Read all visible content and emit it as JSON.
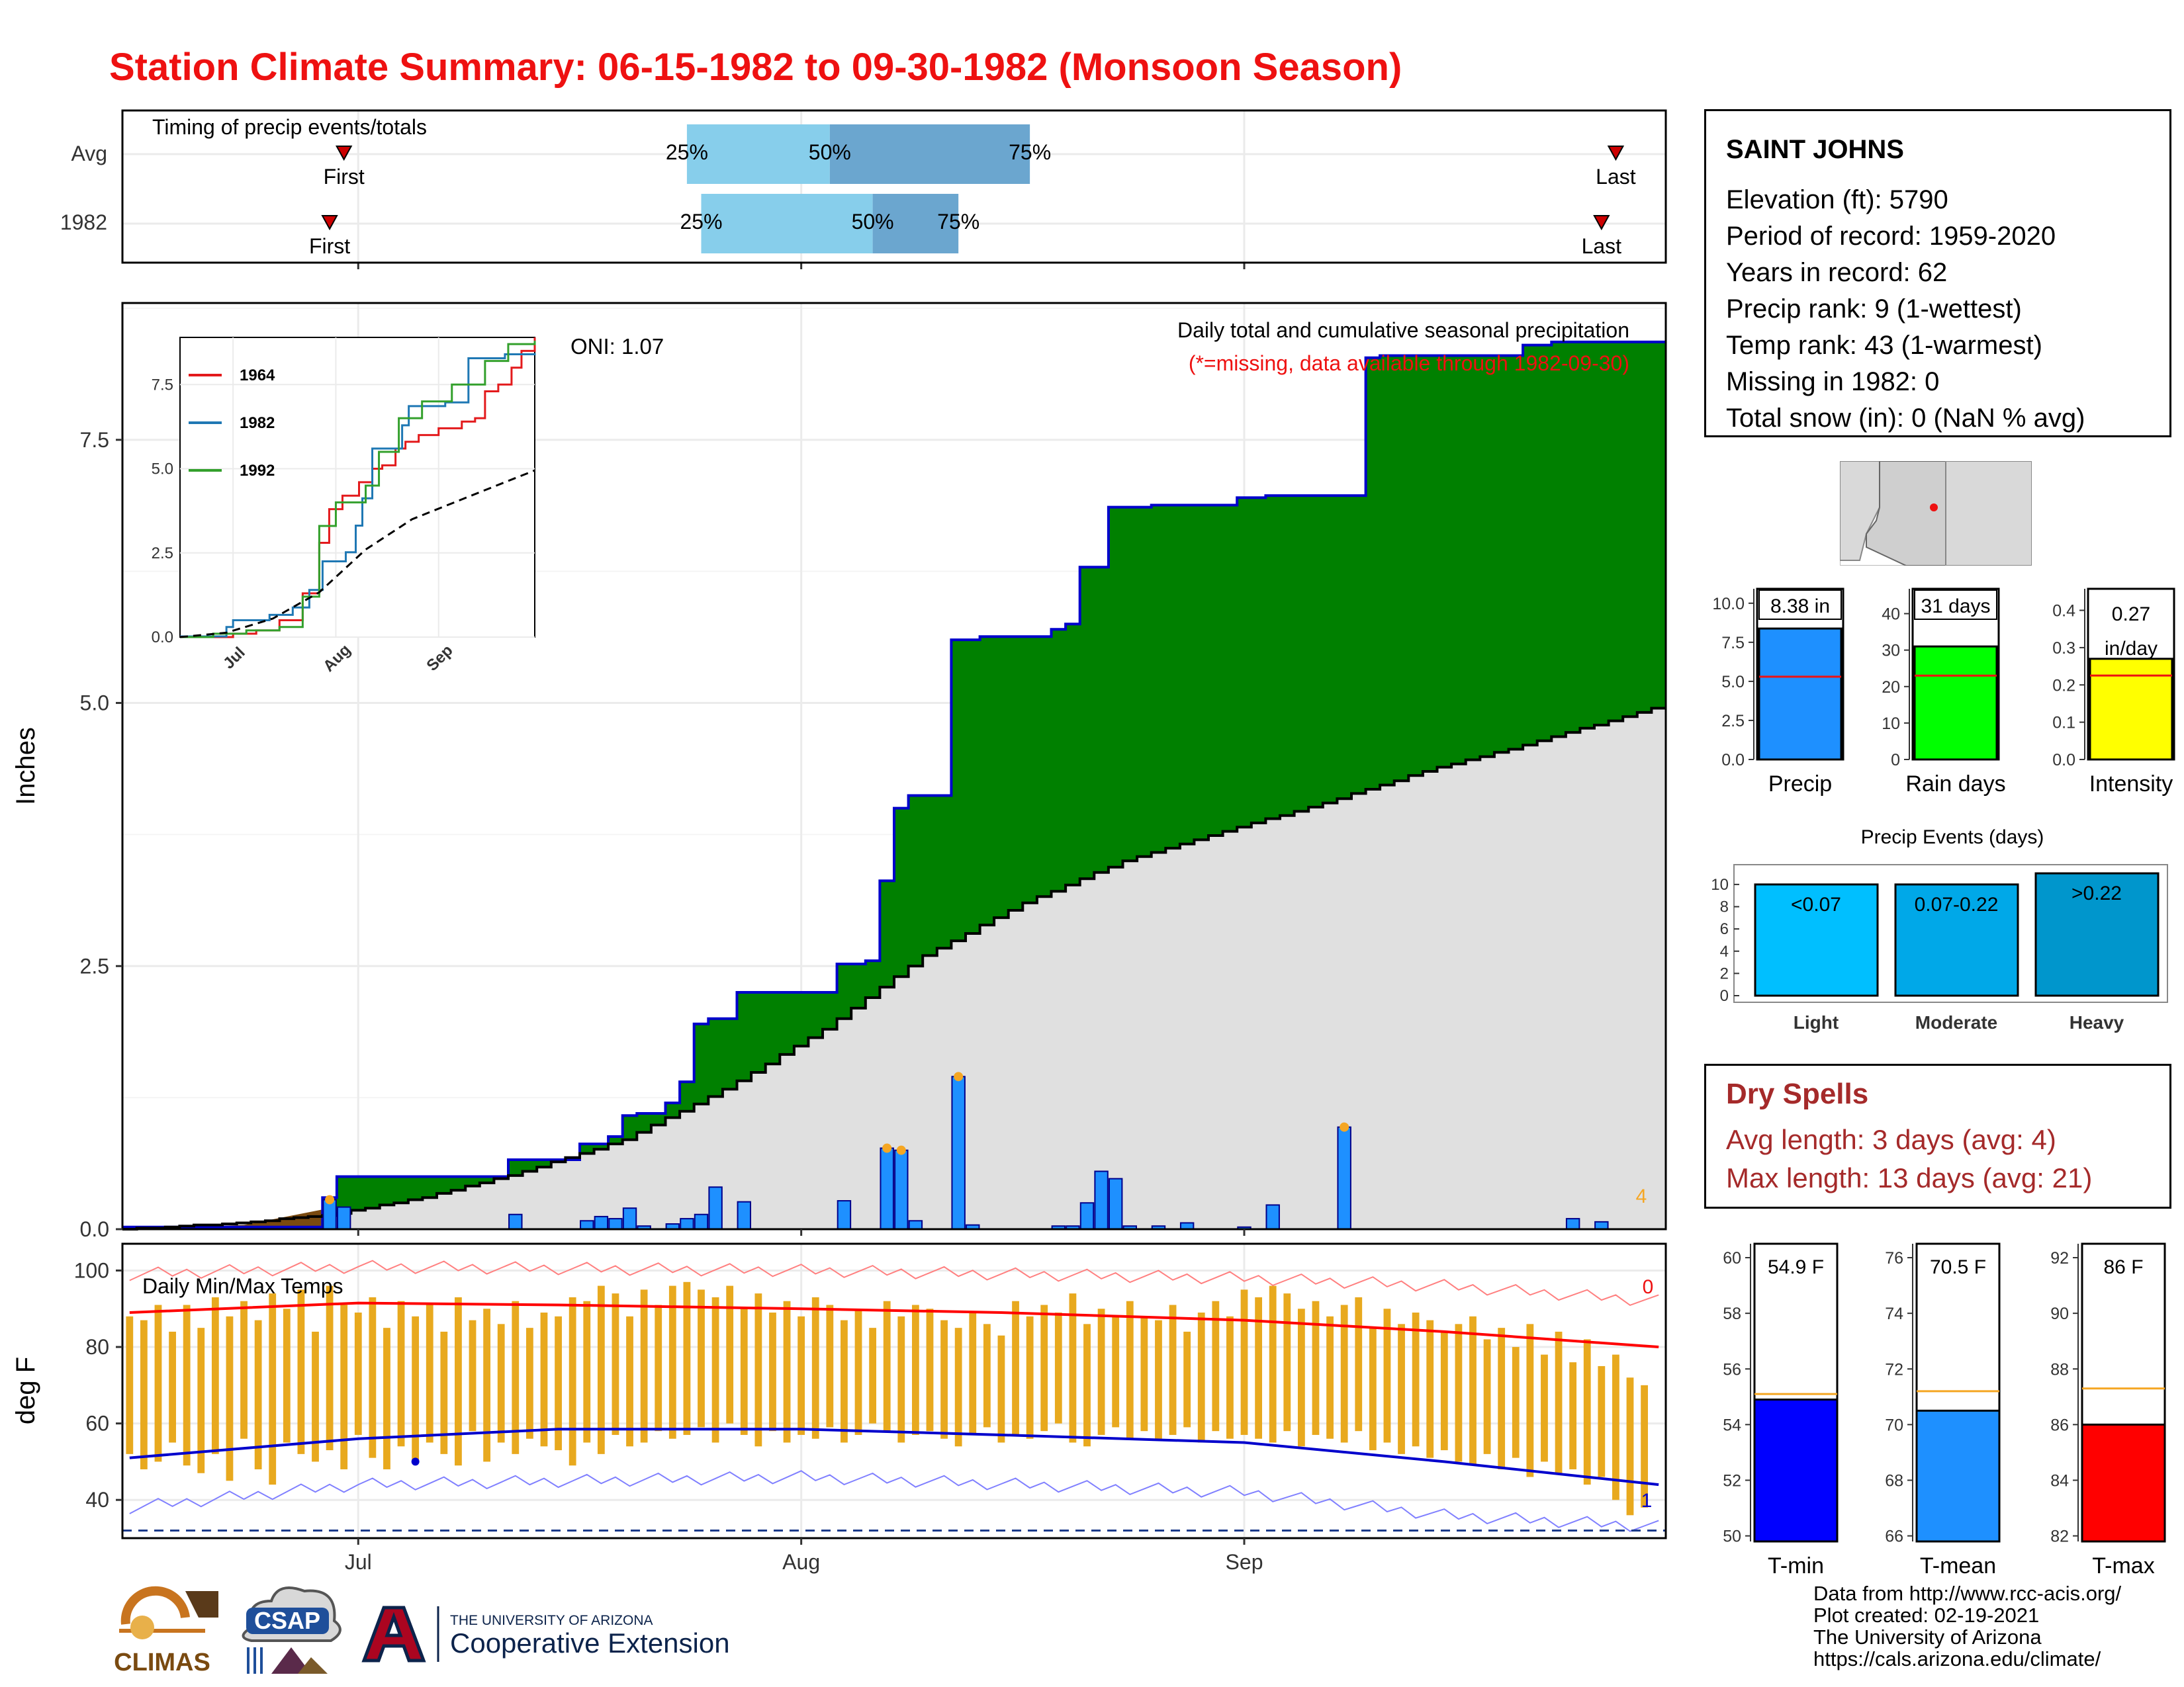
{
  "title": "Station Climate Summary: 06-15-1982 to 09-30-1982 (Monsoon Season)",
  "colors": {
    "title": "#ee1111",
    "cumulative_1982": "#008000",
    "cumulative_avg": "#e0e0e0",
    "daily_bar": "#1e90ff",
    "max_marker": "#f5a623",
    "temp_bar": "#e8a91e",
    "avg_max": "#ff0000",
    "avg_min": "#0000cc",
    "precip_bar": "#1e90ff",
    "raindays_bar": "#00ff00",
    "intensity_bar": "#ffff00",
    "light": "#00bfff",
    "moderate": "#00a8e8",
    "heavy": "#0096cc",
    "tmin": "#0000ff",
    "tmean": "#1e90ff",
    "tmax": "#ff0000",
    "dry_spells": "#a52a2a"
  },
  "timing": {
    "label": "Timing of precip events/totals",
    "rows": [
      "Avg",
      "1982"
    ],
    "first_label": "First",
    "last_label": "Last",
    "p25_label": "25%",
    "p50_label": "50%",
    "p75_label": "75%",
    "avg": {
      "first": "1982-06-30",
      "p25": "1982-07-24",
      "p50": "1982-08-03",
      "p75": "1982-08-17",
      "last": "1982-09-27"
    },
    "y1982": {
      "first": "1982-06-29",
      "p25": "1982-07-25",
      "p50": "1982-08-06",
      "p75": "1982-08-12",
      "last": "1982-09-26"
    }
  },
  "main": {
    "note_title": "Daily total and cumulative seasonal precipitation",
    "note_missing": "(*=missing, data available through 1982-09-30)",
    "oni_label": "ONI: 1.07",
    "missing_count": "4",
    "ylabel": "Inches",
    "yticks": [
      "0.0",
      "2.5",
      "5.0",
      "7.5"
    ],
    "xticks": [
      "Jul",
      "Aug",
      "Sep"
    ]
  },
  "inset": {
    "legend": [
      "1964",
      "1982",
      "1992"
    ],
    "yticks": [
      "0.0",
      "2.5",
      "5.0",
      "7.5"
    ],
    "xticks": [
      "Jul",
      "Aug",
      "Sep"
    ]
  },
  "temps": {
    "label": "Daily Min/Max Temps",
    "ylabel": "deg F",
    "yticks": [
      "40",
      "60",
      "80",
      "100"
    ],
    "count_above": "0",
    "count_below": "1"
  },
  "station": {
    "name": "SAINT JOHNS",
    "lines": [
      "Elevation (ft): 5790",
      "Period of record: 1959-2020",
      "Years in record: 62",
      "Precip rank: 9 (1-wettest)",
      "Temp rank: 43 (1-warmest)",
      "Missing in 1982: 0",
      "Total snow (in): 0 (NaN % avg)"
    ]
  },
  "summary_bars": [
    {
      "title": "Precip",
      "value_label": "8.38 in",
      "value": 8.38,
      "avg": 5.3,
      "yticks": [
        "0.0",
        "2.5",
        "5.0",
        "7.5",
        "10.0"
      ],
      "ymax": 10.5
    },
    {
      "title": "Rain days",
      "value_label": "31 days",
      "value": 31,
      "avg": 23,
      "yticks": [
        "0",
        "10",
        "20",
        "30",
        "40"
      ],
      "ymax": 45
    },
    {
      "title": "Intensity",
      "value_label": "0.27 in/day",
      "value": 0.27,
      "avg": 0.225,
      "yticks": [
        "0.0",
        "0.1",
        "0.2",
        "0.3",
        "0.4"
      ],
      "ymax": 0.44
    }
  ],
  "events": {
    "title": "Precip Events (days)",
    "categories": [
      "Light",
      "Moderate",
      "Heavy"
    ],
    "bins": [
      "<0.07",
      "0.07-0.22",
      ">0.22"
    ],
    "values": [
      10,
      10,
      11
    ],
    "yticks": [
      "0",
      "2",
      "4",
      "6",
      "8",
      "10"
    ]
  },
  "dry_spells": {
    "title": "Dry Spells",
    "avg_line": "Avg length: 3 days (avg: 4)",
    "max_line": "Max length: 13 days (avg: 21)"
  },
  "temp_summary": [
    {
      "title": "T-min",
      "value_label": "54.9 F",
      "value": 54.9,
      "avg": 55.1,
      "ymin": 49.8,
      "ymax": 60.5,
      "yticks": [
        "50",
        "52",
        "54",
        "56",
        "58",
        "60"
      ]
    },
    {
      "title": "T-mean",
      "value_label": "70.5 F",
      "value": 70.5,
      "avg": 71.2,
      "ymin": 65.8,
      "ymax": 76.5,
      "yticks": [
        "66",
        "68",
        "70",
        "72",
        "74",
        "76"
      ]
    },
    {
      "title": "T-max",
      "value_label": "86 F",
      "value": 86,
      "avg": 87.3,
      "ymin": 81.8,
      "ymax": 92.5,
      "yticks": [
        "82",
        "84",
        "86",
        "88",
        "90",
        "92"
      ]
    }
  ],
  "credits": [
    "Data from http://www.rcc-acis.org/",
    "Plot created: 02-19-2021",
    "The University of Arizona",
    "https://cals.arizona.edu/climate/"
  ],
  "logos": {
    "climas": "CLIMAS",
    "csap": "CSAP",
    "ua_line1": "THE UNIVERSITY OF ARIZONA",
    "ua_line2": "Cooperative Extension"
  },
  "chart_data": [
    {
      "type": "area",
      "title": "Daily total and cumulative seasonal precipitation",
      "ylabel": "Inches",
      "ylim": [
        0,
        8.8
      ],
      "xlim": [
        "1982-06-15",
        "1982-09-30"
      ],
      "series": [
        {
          "name": "1982",
          "kind": "cumulative",
          "x": [
            "1982-06-15",
            "1982-06-29",
            "1982-06-30",
            "1982-07-01",
            "1982-07-12",
            "1982-07-17",
            "1982-07-19",
            "1982-07-20",
            "1982-07-21",
            "1982-07-23",
            "1982-07-24",
            "1982-07-25",
            "1982-07-26",
            "1982-07-28",
            "1982-08-04",
            "1982-08-06",
            "1982-08-07",
            "1982-08-08",
            "1982-08-09",
            "1982-08-12",
            "1982-08-14",
            "1982-08-19",
            "1982-08-20",
            "1982-08-21",
            "1982-08-23",
            "1982-08-26",
            "1982-09-01",
            "1982-09-03",
            "1982-09-10",
            "1982-09-11",
            "1982-09-20",
            "1982-09-21",
            "1982-09-23",
            "1982-09-30"
          ],
          "y": [
            0.02,
            0.3,
            0.5,
            0.5,
            0.66,
            0.81,
            0.88,
            1.08,
            1.1,
            1.2,
            1.4,
            1.95,
            2.0,
            2.25,
            2.52,
            2.55,
            3.31,
            4.0,
            4.12,
            5.6,
            5.63,
            5.7,
            5.75,
            6.29,
            6.86,
            6.88,
            6.95,
            6.97,
            8.28,
            8.3,
            8.3,
            8.4,
            8.43,
            8.43
          ]
        },
        {
          "name": "Avg",
          "kind": "cumulative",
          "x": [
            "1982-06-15",
            "1982-06-22",
            "1982-06-29",
            "1982-07-06",
            "1982-07-13",
            "1982-07-20",
            "1982-07-27",
            "1982-08-03",
            "1982-08-10",
            "1982-08-17",
            "1982-08-24",
            "1982-08-31",
            "1982-09-07",
            "1982-09-14",
            "1982-09-21",
            "1982-09-30"
          ],
          "y": [
            0.0,
            0.05,
            0.13,
            0.3,
            0.55,
            0.85,
            1.33,
            1.9,
            2.6,
            3.1,
            3.5,
            3.78,
            4.05,
            4.35,
            4.6,
            4.95
          ]
        },
        {
          "name": "Daily",
          "kind": "bar",
          "x": [
            "1982-06-29",
            "1982-06-30",
            "1982-07-12",
            "1982-07-17",
            "1982-07-18",
            "1982-07-19",
            "1982-07-20",
            "1982-07-21",
            "1982-07-23",
            "1982-07-24",
            "1982-07-25",
            "1982-07-26",
            "1982-07-28",
            "1982-08-04",
            "1982-08-07",
            "1982-08-08",
            "1982-08-09",
            "1982-08-12",
            "1982-08-13",
            "1982-08-19",
            "1982-08-20",
            "1982-08-21",
            "1982-08-22",
            "1982-08-23",
            "1982-08-24",
            "1982-08-26",
            "1982-08-28",
            "1982-09-01",
            "1982-09-03",
            "1982-09-08",
            "1982-09-24",
            "1982-09-26"
          ],
          "y": [
            0.28,
            0.21,
            0.14,
            0.08,
            0.12,
            0.1,
            0.2,
            0.03,
            0.05,
            0.1,
            0.14,
            0.4,
            0.26,
            0.27,
            0.77,
            0.75,
            0.08,
            1.45,
            0.04,
            0.03,
            0.03,
            0.25,
            0.55,
            0.48,
            0.03,
            0.03,
            0.06,
            0.02,
            0.23,
            0.97,
            0.1,
            0.07
          ]
        }
      ]
    },
    {
      "type": "line",
      "title": "",
      "xlim": [
        "1982-06-15",
        "1982-09-30"
      ],
      "ylim": [
        0,
        8.9
      ],
      "series": [
        {
          "name": "1964",
          "x": [
            "1982-06-15",
            "1982-07-01",
            "1982-07-08",
            "1982-07-15",
            "1982-07-22",
            "1982-07-27",
            "1982-07-30",
            "1982-08-03",
            "1982-08-08",
            "1982-08-12",
            "1982-08-15",
            "1982-08-19",
            "1982-08-22",
            "1982-08-26",
            "1982-09-01",
            "1982-09-08",
            "1982-09-12",
            "1982-09-15",
            "1982-09-19",
            "1982-09-23",
            "1982-09-26",
            "1982-09-30"
          ],
          "y": [
            0.0,
            0.1,
            0.2,
            0.5,
            1.3,
            2.8,
            3.8,
            4.2,
            4.6,
            5.0,
            5.1,
            5.6,
            5.8,
            6.0,
            6.2,
            6.4,
            6.5,
            7.3,
            7.5,
            8.0,
            8.5,
            8.9
          ]
        },
        {
          "name": "1982",
          "x": [
            "1982-06-15",
            "1982-06-29",
            "1982-07-01",
            "1982-07-12",
            "1982-07-19",
            "1982-07-24",
            "1982-07-28",
            "1982-08-04",
            "1982-08-07",
            "1982-08-09",
            "1982-08-12",
            "1982-08-21",
            "1982-08-23",
            "1982-09-03",
            "1982-09-10",
            "1982-09-21",
            "1982-09-30"
          ],
          "y": [
            0.02,
            0.3,
            0.5,
            0.66,
            0.88,
            1.4,
            2.25,
            2.52,
            3.31,
            4.12,
            5.6,
            6.29,
            6.86,
            6.97,
            8.28,
            8.4,
            8.43
          ]
        },
        {
          "name": "1992",
          "x": [
            "1982-06-15",
            "1982-06-25",
            "1982-07-05",
            "1982-07-15",
            "1982-07-22",
            "1982-07-27",
            "1982-08-01",
            "1982-08-10",
            "1982-08-14",
            "1982-08-20",
            "1982-08-27",
            "1982-09-05",
            "1982-09-15",
            "1982-09-22",
            "1982-09-30"
          ],
          "y": [
            0.0,
            0.1,
            0.2,
            0.3,
            1.2,
            3.3,
            4.0,
            4.5,
            5.5,
            6.5,
            7.0,
            7.5,
            8.2,
            8.7,
            8.8
          ]
        },
        {
          "name": "Avg",
          "x": [
            "1982-06-15",
            "1982-06-29",
            "1982-07-13",
            "1982-07-27",
            "1982-08-10",
            "1982-08-24",
            "1982-09-07",
            "1982-09-21",
            "1982-09-30"
          ],
          "y": [
            0.0,
            0.13,
            0.55,
            1.33,
            2.6,
            3.5,
            4.05,
            4.6,
            4.95
          ]
        }
      ]
    },
    {
      "type": "bar",
      "title": "Daily Min/Max Temps",
      "ylabel": "deg F",
      "ylim": [
        30,
        107
      ],
      "xlim": [
        "1982-06-15",
        "1982-09-30"
      ],
      "series": [
        {
          "name": "Max",
          "x_start": "1982-06-15",
          "values": [
            88,
            87,
            91,
            84,
            91,
            85,
            93,
            88,
            92,
            87,
            94,
            90,
            95,
            84,
            96,
            91,
            89,
            93,
            85,
            92,
            88,
            91,
            84,
            93,
            87,
            90,
            86,
            92,
            85,
            89,
            88,
            93,
            92,
            96,
            94,
            88,
            95,
            91,
            96,
            97,
            95,
            93,
            96,
            90,
            94,
            89,
            92,
            88,
            93,
            91,
            87,
            90,
            85,
            92,
            88,
            91,
            90,
            87,
            85,
            89,
            86,
            83,
            92,
            88,
            91,
            89,
            94,
            86,
            90,
            88,
            92,
            88,
            87,
            91,
            84,
            89,
            92,
            88,
            95,
            93,
            96,
            94,
            90,
            92,
            88,
            91,
            93,
            85,
            90,
            86,
            89,
            87,
            84,
            86,
            88,
            82,
            85,
            80,
            86,
            78,
            84,
            76,
            82,
            75,
            78,
            72,
            70
          ]
        },
        {
          "name": "Min",
          "x_start": "1982-06-15",
          "values": [
            52,
            48,
            50,
            55,
            49,
            47,
            52,
            45,
            56,
            48,
            44,
            55,
            52,
            50,
            53,
            48,
            57,
            51,
            48,
            54,
            50,
            55,
            52,
            49,
            58,
            50,
            55,
            52,
            56,
            54,
            53,
            49,
            55,
            52,
            57,
            54,
            55,
            58,
            56,
            57,
            59,
            55,
            60,
            57,
            54,
            58,
            55,
            57,
            56,
            59,
            55,
            57,
            60,
            58,
            55,
            57,
            58,
            56,
            54,
            57,
            59,
            55,
            57,
            56,
            58,
            60,
            55,
            54,
            57,
            59,
            56,
            58,
            56,
            57,
            59,
            55,
            58,
            56,
            57,
            56,
            55,
            58,
            54,
            57,
            56,
            55,
            58,
            53,
            55,
            52,
            54,
            51,
            53,
            50,
            49,
            52,
            48,
            51,
            46,
            50,
            47,
            48,
            44,
            46,
            40,
            36,
            38
          ]
        },
        {
          "name": "Avg max",
          "x": [
            "1982-06-15",
            "1982-07-01",
            "1982-07-15",
            "1982-08-01",
            "1982-08-15",
            "1982-09-01",
            "1982-09-15",
            "1982-09-30"
          ],
          "y": [
            89,
            91.5,
            91,
            90,
            89,
            87,
            84,
            80
          ]
        },
        {
          "name": "Avg min",
          "x": [
            "1982-06-15",
            "1982-07-01",
            "1982-07-15",
            "1982-08-01",
            "1982-08-15",
            "1982-09-01",
            "1982-09-15",
            "1982-09-30"
          ],
          "y": [
            51,
            56,
            58.5,
            58.5,
            57,
            55,
            50,
            44
          ]
        },
        {
          "name": "Record max",
          "x": [
            "1982-06-15",
            "1982-07-01",
            "1982-08-01",
            "1982-09-01",
            "1982-09-15",
            "1982-09-30"
          ],
          "y": [
            99,
            101,
            100,
            98,
            96,
            92
          ]
        },
        {
          "name": "Record min",
          "x": [
            "1982-06-15",
            "1982-07-01",
            "1982-08-01",
            "1982-09-01",
            "1982-09-15",
            "1982-09-30"
          ],
          "y": [
            38,
            44,
            46,
            42,
            36,
            33
          ]
        },
        {
          "name": "Freezing",
          "x": [
            "1982-06-15",
            "1982-09-30"
          ],
          "y": [
            32,
            32
          ]
        }
      ]
    },
    {
      "type": "bar",
      "categories": [
        "Precip",
        "Rain days",
        "Intensity"
      ],
      "values": [
        8.38,
        31,
        0.27
      ],
      "averages": [
        5.3,
        23,
        0.225
      ]
    },
    {
      "type": "bar",
      "title": "Precip Events (days)",
      "categories": [
        "Light",
        "Moderate",
        "Heavy"
      ],
      "values": [
        10,
        10,
        11
      ]
    },
    {
      "type": "bar",
      "categories": [
        "T-min",
        "T-mean",
        "T-max"
      ],
      "values": [
        54.9,
        70.5,
        86
      ],
      "averages": [
        55.1,
        71.2,
        87.3
      ]
    }
  ]
}
